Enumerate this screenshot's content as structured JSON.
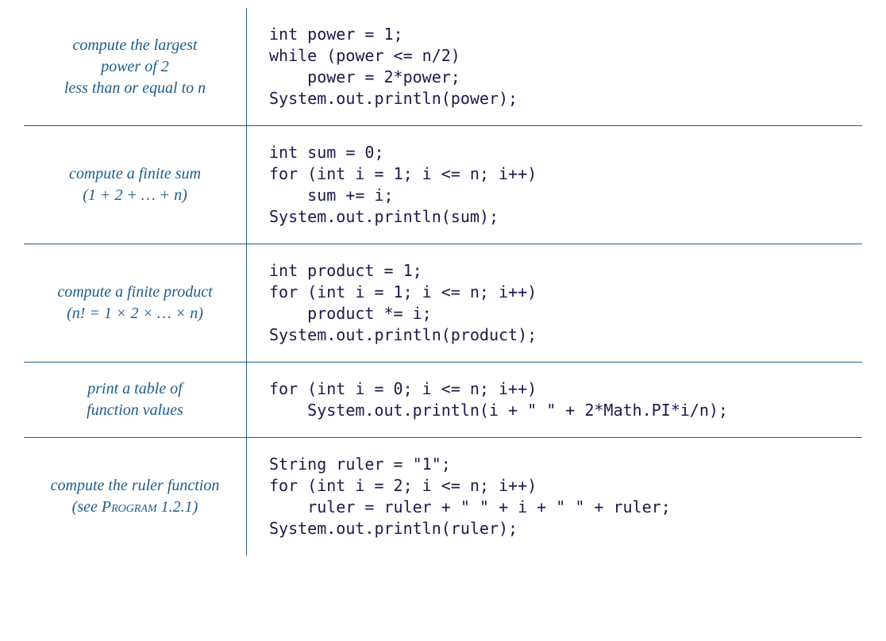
{
  "colors": {
    "accent": "#1f5c8c",
    "code_text": "#1a1a4a",
    "background": "#ffffff"
  },
  "typography": {
    "desc_font": "Georgia, serif",
    "desc_fontsize": 20,
    "desc_style": "italic",
    "code_font": "Lucida Sans Typewriter, monospace",
    "code_fontsize": 20
  },
  "rows": [
    {
      "desc_line1": "compute the largest",
      "desc_line2": "power of 2",
      "desc_line3": "less than or equal to n",
      "code": "int power = 1;\nwhile (power <= n/2)\n    power = 2*power;\nSystem.out.println(power);"
    },
    {
      "desc_line1": "compute a finite sum",
      "desc_line2": "(1 + 2 + … + n)",
      "code": "int sum = 0;\nfor (int i = 1; i <= n; i++)\n    sum += i;\nSystem.out.println(sum);"
    },
    {
      "desc_line1": "compute a finite product",
      "desc_line2": "(n! = 1 × 2 ×  … × n)",
      "code": "int product = 1;\nfor (int i = 1; i <= n; i++)\n    product *= i;\nSystem.out.println(product);"
    },
    {
      "desc_line1": "print a table of",
      "desc_line2": "function values",
      "code": "for (int i = 0; i <= n; i++)\n    System.out.println(i + \" \" + 2*Math.PI*i/n);"
    },
    {
      "desc_line1": "compute the ruler function",
      "desc_see_prefix": "(see ",
      "desc_program_ref": "Program",
      "desc_program_num": " 1.2.1)",
      "code": "String ruler = \"1\";\nfor (int i = 2; i <= n; i++)\n    ruler = ruler + \" \" + i + \" \" + ruler;\nSystem.out.println(ruler);"
    }
  ]
}
